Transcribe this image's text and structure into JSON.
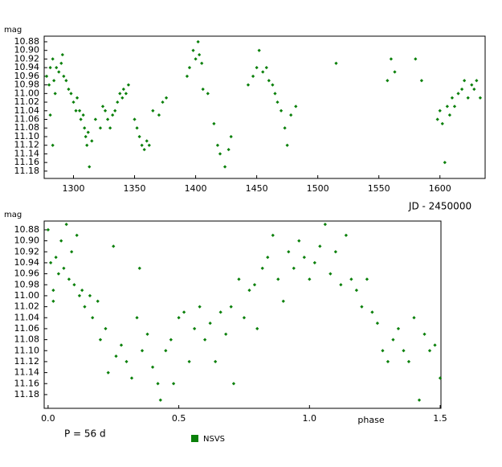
{
  "chart_data": [
    {
      "type": "scatter",
      "y_label": "mag",
      "x_label": "JD - 2450000",
      "xlim": [
        1276,
        1637
      ],
      "ylim": [
        11.197,
        10.867
      ],
      "xticks": [
        1300,
        1350,
        1400,
        1450,
        1500,
        1550,
        1600
      ],
      "yticks": [
        10.88,
        {
          "value": 10.9,
          "label": "10.90"
        },
        10.92,
        10.94,
        10.96,
        10.98,
        {
          "value": 11.0,
          "label": "11.00"
        },
        11.02,
        11.04,
        11.06,
        11.08,
        {
          "value": 11.1,
          "label": "11.10"
        },
        11.12,
        11.14,
        11.16,
        11.18
      ],
      "series": [
        {
          "color": "#0a800a",
          "x": [
            1278,
            1280,
            1281,
            1283,
            1284,
            1285,
            1286,
            1288,
            1290,
            1291,
            1292,
            1294,
            1281,
            1283,
            1296,
            1298,
            1300,
            1302,
            1303,
            1305,
            1306,
            1308,
            1309,
            1310,
            1311,
            1312,
            1313,
            1315,
            1318,
            1322,
            1324,
            1326,
            1328,
            1330,
            1332,
            1334,
            1336,
            1338,
            1340,
            1341,
            1343,
            1345,
            1350,
            1352,
            1354,
            1356,
            1358,
            1360,
            1362,
            1365,
            1370,
            1373,
            1376,
            1393,
            1395,
            1398,
            1400,
            1402,
            1403,
            1405,
            1406,
            1410,
            1415,
            1418,
            1420,
            1424,
            1427,
            1429,
            1443,
            1447,
            1450,
            1452,
            1455,
            1458,
            1460,
            1463,
            1465,
            1467,
            1470,
            1473,
            1475,
            1478,
            1482,
            1515,
            1557,
            1560,
            1563,
            1580,
            1585,
            1598,
            1600,
            1602,
            1604,
            1606,
            1608,
            1610,
            1612,
            1615,
            1618,
            1620,
            1623,
            1626,
            1628,
            1630,
            1633
          ],
          "values": [
            10.96,
            10.98,
            10.94,
            10.92,
            10.97,
            11.0,
            10.94,
            10.95,
            10.93,
            10.91,
            10.96,
            10.97,
            11.05,
            11.12,
            10.99,
            11.0,
            11.02,
            11.04,
            11.01,
            11.04,
            11.06,
            11.05,
            11.08,
            11.1,
            11.12,
            11.09,
            11.17,
            11.11,
            11.06,
            11.08,
            11.03,
            11.04,
            11.06,
            11.08,
            11.05,
            11.04,
            11.02,
            11.0,
            11.01,
            10.99,
            11.0,
            10.98,
            11.06,
            11.08,
            11.1,
            11.12,
            11.13,
            11.11,
            11.12,
            11.04,
            11.05,
            11.02,
            11.01,
            10.96,
            10.94,
            10.9,
            10.92,
            10.88,
            10.91,
            10.93,
            10.99,
            11.0,
            11.07,
            11.12,
            11.14,
            11.17,
            11.13,
            11.1,
            10.98,
            10.96,
            10.94,
            10.9,
            10.95,
            10.94,
            10.97,
            10.98,
            11.0,
            11.02,
            11.04,
            11.08,
            11.12,
            11.05,
            11.03,
            10.93,
            10.97,
            10.92,
            10.95,
            10.92,
            10.97,
            11.06,
            11.04,
            11.07,
            11.16,
            11.03,
            11.05,
            11.01,
            11.03,
            11.0,
            10.99,
            10.97,
            11.01,
            10.98,
            10.99,
            10.97,
            11.01
          ]
        }
      ]
    },
    {
      "type": "scatter",
      "y_label": "mag",
      "x_label": "phase",
      "annotation": "P = 56 d",
      "legend": "bottom",
      "xlim": [
        -0.015,
        1.503
      ],
      "ylim": [
        11.205,
        10.864
      ],
      "xticks": [
        {
          "value": 0,
          "label": "0.0"
        },
        0.5,
        {
          "value": 1,
          "label": "1.0"
        },
        1.5
      ],
      "yticks": [
        10.88,
        {
          "value": 10.9,
          "label": "10.90"
        },
        10.92,
        10.94,
        10.96,
        10.98,
        {
          "value": 11.0,
          "label": "11.00"
        },
        11.02,
        11.04,
        11.06,
        11.08,
        {
          "value": 11.1,
          "label": "11.10"
        },
        11.12,
        11.14,
        11.16,
        11.18
      ],
      "series": [
        {
          "name": "NSVS",
          "color": "#0a800a",
          "x": [
            0.0,
            0.01,
            0.02,
            0.02,
            0.03,
            0.04,
            0.05,
            0.06,
            0.07,
            0.08,
            0.09,
            0.1,
            0.11,
            0.12,
            0.13,
            0.14,
            0.16,
            0.17,
            0.19,
            0.2,
            0.22,
            0.23,
            0.25,
            0.26,
            0.28,
            0.3,
            0.32,
            0.34,
            0.35,
            0.36,
            0.38,
            0.4,
            0.42,
            0.43,
            0.45,
            0.47,
            0.48,
            0.5,
            0.52,
            0.54,
            0.56,
            0.58,
            0.6,
            0.62,
            0.64,
            0.66,
            0.68,
            0.7,
            0.71,
            0.73,
            0.75,
            0.77,
            0.79,
            0.8,
            0.82,
            0.84,
            0.86,
            0.88,
            0.9,
            0.92,
            0.94,
            0.96,
            0.98,
            1.0,
            1.02,
            1.04,
            1.06,
            1.08,
            1.1,
            1.12,
            1.14,
            1.16,
            1.18,
            1.2,
            1.22,
            1.24,
            1.26,
            1.28,
            1.3,
            1.32,
            1.34,
            1.36,
            1.38,
            1.4,
            1.42,
            1.44,
            1.46,
            1.48,
            1.5
          ],
          "values": [
            10.88,
            10.94,
            10.99,
            11.01,
            10.93,
            10.96,
            10.9,
            10.95,
            10.87,
            10.97,
            10.92,
            10.98,
            10.89,
            11.0,
            10.99,
            11.02,
            11.0,
            11.04,
            11.01,
            11.08,
            11.06,
            11.14,
            10.91,
            11.11,
            11.09,
            11.12,
            11.15,
            11.04,
            10.95,
            11.1,
            11.07,
            11.13,
            11.16,
            11.19,
            11.1,
            11.08,
            11.16,
            11.04,
            11.03,
            11.12,
            11.06,
            11.02,
            11.08,
            11.05,
            11.12,
            11.03,
            11.07,
            11.02,
            11.16,
            10.97,
            11.04,
            10.99,
            10.98,
            11.06,
            10.95,
            10.93,
            10.89,
            10.97,
            11.01,
            10.92,
            10.95,
            10.9,
            10.93,
            10.97,
            10.94,
            10.91,
            10.87,
            10.96,
            10.92,
            10.98,
            10.89,
            10.97,
            10.99,
            11.02,
            10.97,
            11.03,
            11.05,
            11.1,
            11.12,
            11.08,
            11.06,
            11.1,
            11.12,
            11.04,
            11.19,
            11.07,
            11.1,
            11.09,
            11.15
          ]
        }
      ]
    }
  ]
}
